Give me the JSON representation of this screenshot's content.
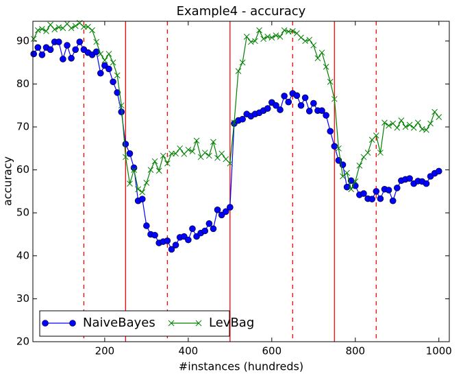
{
  "chart_data": {
    "type": "line",
    "title": "Example4 - accuracy",
    "x_label": "#instances (hundreds)",
    "y_label": "accuracy",
    "x": [
      30,
      40,
      50,
      60,
      70,
      80,
      90,
      100,
      110,
      120,
      130,
      140,
      150,
      160,
      170,
      180,
      190,
      200,
      210,
      220,
      230,
      240,
      250,
      260,
      270,
      280,
      290,
      300,
      310,
      320,
      330,
      340,
      350,
      360,
      370,
      380,
      390,
      400,
      410,
      420,
      430,
      440,
      450,
      460,
      470,
      480,
      490,
      500,
      510,
      520,
      530,
      540,
      550,
      560,
      570,
      580,
      590,
      600,
      610,
      620,
      630,
      640,
      650,
      660,
      670,
      680,
      690,
      700,
      710,
      720,
      730,
      740,
      750,
      760,
      770,
      780,
      790,
      800,
      810,
      820,
      830,
      840,
      850,
      860,
      870,
      880,
      890,
      900,
      910,
      920,
      930,
      940,
      950,
      960,
      970,
      980,
      990,
      1000
    ],
    "series": [
      {
        "name": "NaiveBayes",
        "color": "#0000ff",
        "marker": "circle",
        "values": [
          87,
          88.5,
          86.8,
          88.5,
          88,
          89.8,
          89.8,
          85.8,
          89,
          86,
          88,
          89.8,
          88,
          87.3,
          86.8,
          87.5,
          82.5,
          84.3,
          83.5,
          80.5,
          78,
          73.5,
          66,
          63.8,
          60.5,
          52.8,
          53.2,
          47,
          45,
          44.8,
          43,
          43.3,
          43.5,
          41.5,
          42.5,
          44.3,
          44.5,
          43.7,
          46.3,
          44.5,
          45.3,
          45.8,
          47.5,
          46.3,
          50.7,
          49.5,
          50.3,
          51.3,
          70.8,
          71.5,
          71.8,
          73,
          72.5,
          73,
          73.3,
          73.8,
          74.3,
          75.7,
          75,
          74,
          77.2,
          75.8,
          77.8,
          77.3,
          75,
          76.8,
          73.7,
          75.5,
          73.8,
          73.8,
          72.7,
          69,
          65.5,
          62.2,
          61.2,
          56,
          57.5,
          56.3,
          54.2,
          54.5,
          53.3,
          53.2,
          55,
          53.3,
          55.5,
          55.3,
          52.8,
          55.8,
          57.5,
          57.8,
          58,
          56.8,
          57.4,
          57.3,
          56.8,
          58.5,
          59.2,
          59.7
        ]
      },
      {
        "name": "LevBag",
        "color": "#008000",
        "marker": "x",
        "values": [
          90.5,
          92.5,
          92.8,
          92.3,
          93.8,
          92.7,
          93.2,
          93,
          94,
          93,
          93.5,
          94.2,
          93.3,
          93.3,
          92.5,
          89.8,
          87,
          85.5,
          87,
          85,
          82,
          75,
          63,
          56.8,
          60,
          55.5,
          54.8,
          57,
          60,
          62,
          59.8,
          63.3,
          61.5,
          63.8,
          63.8,
          65,
          63.7,
          64.7,
          64.3,
          66.8,
          63,
          64,
          63.3,
          66.5,
          62.8,
          63.8,
          62.5,
          61.5,
          71,
          83,
          85,
          91,
          89.8,
          90,
          92.5,
          90.5,
          91,
          90.8,
          91.3,
          91,
          92.5,
          92.2,
          92.3,
          91.8,
          90.8,
          90,
          90.3,
          89,
          86,
          87.3,
          84,
          80.5,
          76.5,
          65,
          58.5,
          59.3,
          55.5,
          57.3,
          61,
          63,
          64,
          67,
          68,
          64,
          71,
          70.3,
          70.8,
          69.8,
          71.5,
          70,
          70.5,
          69.8,
          71,
          69.5,
          69.3,
          70.8,
          73.5,
          72.3
        ]
      }
    ],
    "xlim": [
      28,
      1025
    ],
    "ylim": [
      20,
      94.6
    ],
    "xticks": [
      200,
      400,
      600,
      800,
      1000
    ],
    "yticks": [
      20,
      30,
      40,
      50,
      60,
      70,
      80,
      90
    ],
    "drift_lines": [
      250,
      500,
      750
    ],
    "window_lines": [
      150,
      350,
      650,
      850
    ],
    "drift_color": "#ff0000",
    "legend": "lower left"
  }
}
